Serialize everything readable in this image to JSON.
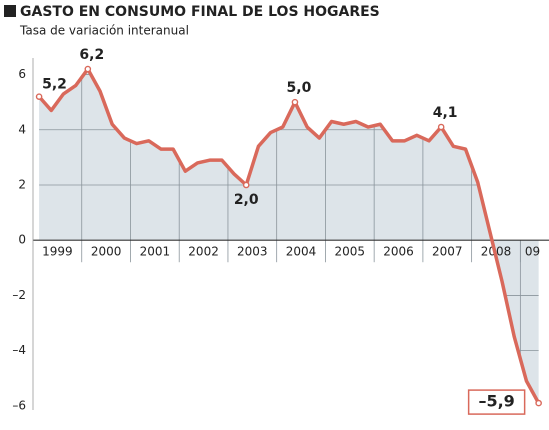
{
  "chart_data": {
    "type": "line",
    "title": "GASTO EN CONSUMO FINAL DE LOS HOGARES",
    "subtitle": "Tasa de variación interanual",
    "years": [
      "1999",
      "2000",
      "2001",
      "2002",
      "2003",
      "2004",
      "2005",
      "2006",
      "2007",
      "2008",
      "09"
    ],
    "values": [
      5.2,
      4.7,
      5.3,
      5.6,
      6.2,
      5.4,
      4.2,
      3.7,
      3.5,
      3.6,
      3.3,
      3.3,
      2.5,
      2.8,
      2.9,
      2.9,
      2.4,
      2.0,
      3.4,
      3.9,
      4.1,
      5.0,
      4.1,
      3.7,
      4.3,
      4.2,
      4.3,
      4.1,
      4.2,
      3.6,
      3.6,
      3.8,
      3.6,
      4.1,
      3.4,
      3.3,
      2.1,
      0.3,
      -1.5,
      -3.5,
      -5.1,
      -5.9
    ],
    "value_labels": [
      "5,2",
      null,
      null,
      null,
      "6,2",
      null,
      null,
      null,
      null,
      null,
      null,
      null,
      null,
      null,
      null,
      null,
      null,
      "2,0",
      null,
      null,
      null,
      "5,0",
      null,
      null,
      null,
      null,
      null,
      null,
      null,
      null,
      null,
      null,
      null,
      "4,1",
      null,
      null,
      null,
      null,
      null,
      null,
      null,
      "–5,9"
    ],
    "color": "#d9695b",
    "fill": "#dde4e9",
    "ylim": [
      -6.15,
      6.6
    ],
    "yticks": [
      6,
      4,
      2,
      0,
      {
        "value": -2,
        "label": "–2"
      },
      {
        "value": -4,
        "label": "–4"
      },
      {
        "value": -6,
        "label": "–6"
      }
    ],
    "grid": true
  }
}
